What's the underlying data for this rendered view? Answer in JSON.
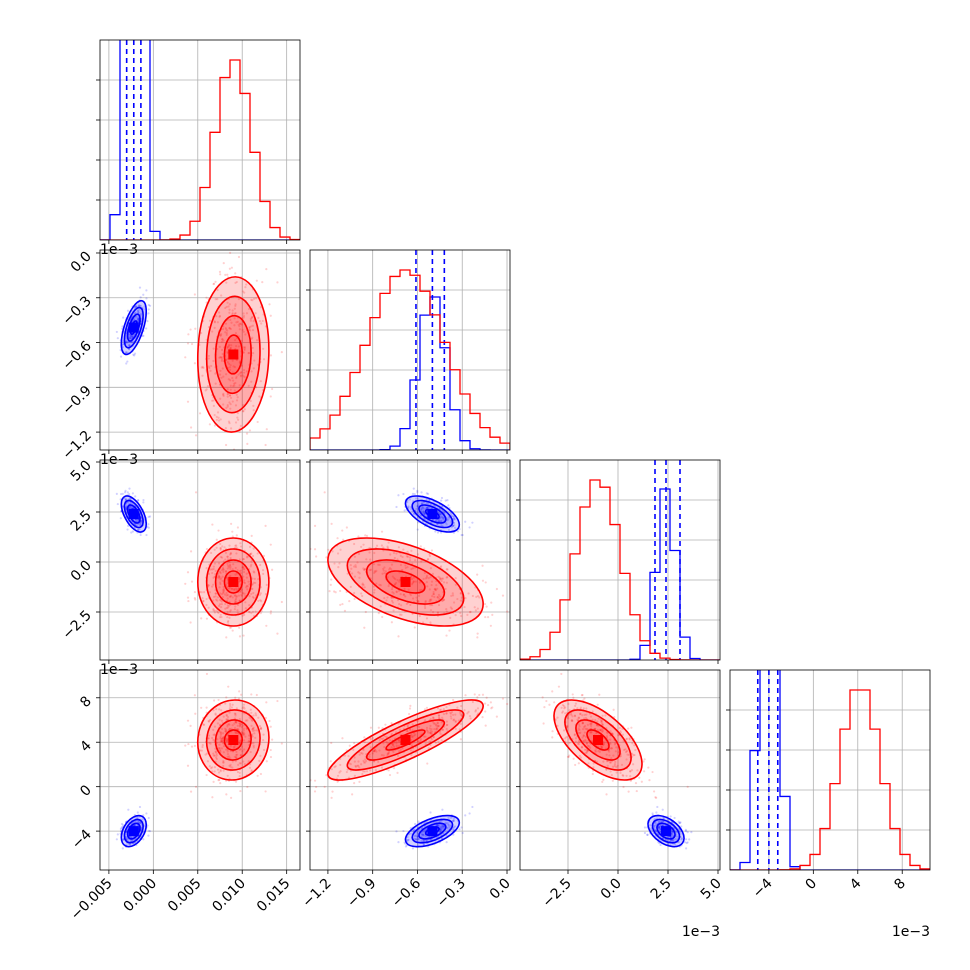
{
  "chart_data": {
    "type": "corner",
    "n_params": 4,
    "colors": {
      "series_a": "#0000ff",
      "series_b": "#ff0000",
      "grid": "#b0b0b0",
      "axes": "#000000"
    },
    "series": [
      {
        "name": "blue",
        "color": "#0000ff",
        "means": [
          -0.0022,
          -0.0005,
          0.0024,
          -0.004
        ],
        "stds": [
          0.0007,
          9e-05,
          0.00045,
          0.0007
        ],
        "corr": [
          [
            1.0,
            0.6,
            -0.55,
            0.4
          ],
          [
            0.6,
            1.0,
            -0.6,
            0.55
          ],
          [
            -0.55,
            -0.6,
            1.0,
            -0.45
          ],
          [
            0.4,
            0.55,
            -0.45,
            1.0
          ]
        ],
        "quantile_lines": [
          [
            -0.003,
            -0.0022,
            -0.0014
          ],
          [
            -0.00061,
            -0.0005,
            -0.00042
          ],
          [
            0.00185,
            0.0024,
            0.0031
          ],
          [
            -0.005,
            -0.004,
            -0.0032
          ]
        ],
        "hist_peak_ratio": [
          6.0,
          0.85,
          0.95,
          2.4
        ]
      },
      {
        "name": "red",
        "color": "#ff0000",
        "means": [
          0.009,
          -0.00068,
          -0.001,
          0.0042
        ],
        "stds": [
          0.002,
          0.00026,
          0.0011,
          0.0018
        ],
        "corr": [
          [
            1.0,
            0.05,
            0.0,
            0.05
          ],
          [
            0.05,
            1.0,
            -0.5,
            0.85
          ],
          [
            0.0,
            -0.5,
            1.0,
            -0.6
          ],
          [
            0.05,
            0.85,
            -0.6,
            1.0
          ]
        ],
        "hist_peak_ratio": [
          1.0,
          1.0,
          1.0,
          1.0
        ]
      }
    ],
    "axes": [
      {
        "range": [
          -0.006,
          0.0165
        ],
        "ticks": [
          -0.005,
          0.0,
          0.005,
          0.01,
          0.015
        ],
        "tick_labels": [
          "−0.005",
          "0.000",
          "0.005",
          "0.010",
          "0.015"
        ],
        "offset_label": ""
      },
      {
        "range": [
          -0.00132,
          2e-05
        ],
        "ticks": [
          -0.0012,
          -0.0009,
          -0.0006,
          -0.0003,
          0.0
        ],
        "tick_labels": [
          "−1.2",
          "−0.9",
          "−0.6",
          "−0.3",
          "0.0"
        ],
        "offset_label": "1e−3"
      },
      {
        "range": [
          -0.0049,
          0.0051
        ],
        "ticks": [
          -0.0025,
          0.0,
          0.0025,
          0.005
        ],
        "tick_labels": [
          "−2.5",
          "0.0",
          "2.5",
          "5.0"
        ],
        "offset_label": "1e−3"
      },
      {
        "range": [
          -0.0075,
          0.0105
        ],
        "ticks": [
          -0.004,
          0.0,
          0.004,
          0.008
        ],
        "tick_labels": [
          "−4",
          "0",
          "4",
          "8"
        ],
        "offset_label": "1e−3"
      }
    ],
    "contour_levels_sigma": [
      0.5,
      1.0,
      1.5,
      2.0
    ],
    "grid": true,
    "title": "",
    "xlabel": "",
    "ylabel": ""
  }
}
